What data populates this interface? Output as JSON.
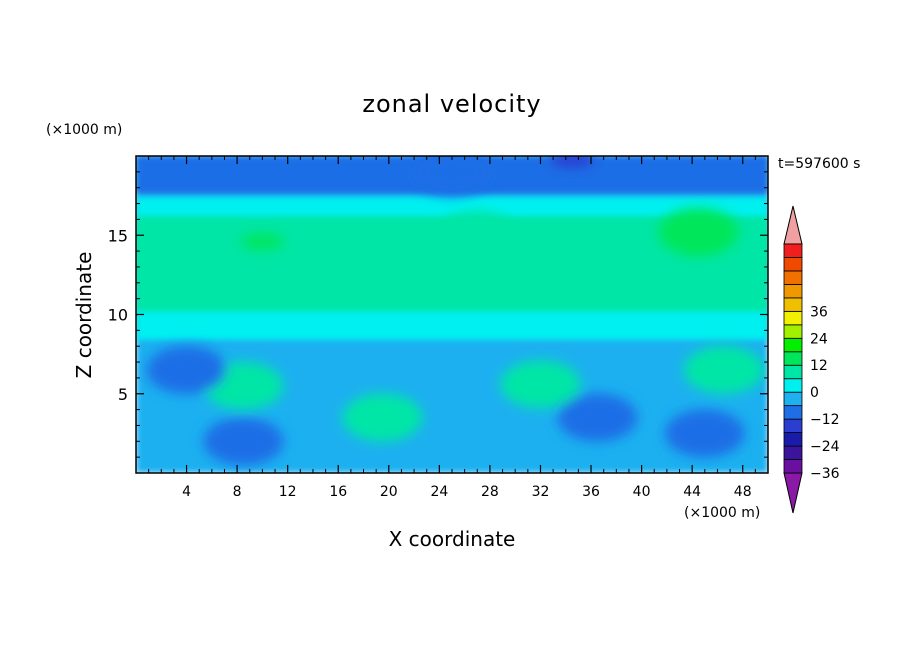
{
  "chart_data": {
    "type": "heatmap",
    "title": "zonal velocity",
    "xlabel": "X coordinate",
    "ylabel": "Z coordinate",
    "x_unit": "(×1000 m)",
    "y_unit": "(×1000 m)",
    "time_label": "t=597600 s",
    "xlim": [
      0,
      50
    ],
    "ylim": [
      0,
      20
    ],
    "x_ticks": [
      4,
      8,
      12,
      16,
      20,
      24,
      28,
      32,
      36,
      40,
      44,
      48
    ],
    "y_ticks": [
      5,
      10,
      15
    ],
    "colorbar": {
      "min": -42,
      "max": 42,
      "step": 6,
      "tick_values": [
        36,
        24,
        12,
        0,
        -12,
        -24,
        -36
      ],
      "tick_labels": [
        "36",
        "24",
        "12",
        "0",
        "−12",
        "−24",
        "−36"
      ],
      "colors": [
        "#8a1aa6",
        "#6a0fa0",
        "#3a149a",
        "#1b1baa",
        "#2b3ecf",
        "#1f6ee6",
        "#1fb0f0",
        "#00f0f0",
        "#00e6a6",
        "#00e65a",
        "#00f000",
        "#a0f000",
        "#f0f000",
        "#f0c000",
        "#f09800",
        "#f07000",
        "#f04a00",
        "#f01e1e",
        "#f0a0a0"
      ]
    },
    "field_features": [
      {
        "x": 10,
        "z": 14.6,
        "u": 15
      },
      {
        "x": 44.5,
        "z": 15.2,
        "u": 12
      },
      {
        "x": 27,
        "z": 15.0,
        "u": 10
      },
      {
        "x": 8.5,
        "z": 5.5,
        "u": 8
      },
      {
        "x": 19.5,
        "z": 3.5,
        "u": 7
      },
      {
        "x": 32,
        "z": 5.6,
        "u": 9
      },
      {
        "x": 46.5,
        "z": 6.5,
        "u": 8
      },
      {
        "x": 8.5,
        "z": 2.0,
        "u": -9
      },
      {
        "x": 36.5,
        "z": 3.5,
        "u": -9
      },
      {
        "x": 4,
        "z": 6.5,
        "u": -7
      },
      {
        "x": 45,
        "z": 2.5,
        "u": -7
      },
      {
        "x": 25,
        "z": 19.0,
        "u": -8
      },
      {
        "x": 34.5,
        "z": 19.8,
        "u": -14
      }
    ]
  }
}
